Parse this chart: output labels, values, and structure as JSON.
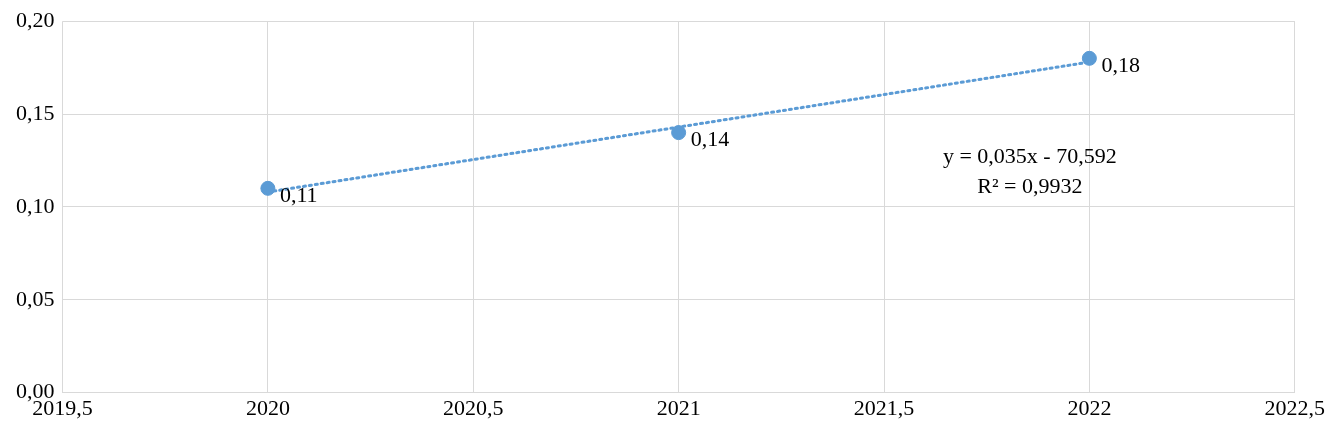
{
  "chart_data": {
    "type": "scatter",
    "xlim": [
      2019.5,
      2022.5
    ],
    "xticks": [
      {
        "value": 2019.5,
        "label": "2019,5"
      },
      {
        "value": 2020,
        "label": "2020"
      },
      {
        "value": 2020.5,
        "label": "2020,5"
      },
      {
        "value": 2021,
        "label": "2021"
      },
      {
        "value": 2021.5,
        "label": "2021,5"
      },
      {
        "value": 2022,
        "label": "2022"
      },
      {
        "value": 2022.5,
        "label": "2022,5"
      }
    ],
    "ylim": [
      0,
      0.2
    ],
    "yticks": [
      {
        "value": 0,
        "label": "0,00"
      },
      {
        "value": 0.05,
        "label": "0,05"
      },
      {
        "value": 0.1,
        "label": "0,10"
      },
      {
        "value": 0.15,
        "label": "0,15"
      },
      {
        "value": 0.2,
        "label": "0,20"
      }
    ],
    "grid": true,
    "legend": false,
    "series": [
      {
        "color": "#5b9bd5",
        "marker": "circle",
        "x": [
          2020,
          2021,
          2022
        ],
        "values": [
          0.11,
          0.14,
          0.18
        ],
        "value_labels": [
          "0,11",
          "0,14",
          "0,18"
        ]
      },
      {
        "type": "line",
        "color": "#5b9bd5",
        "marker": "none",
        "line_style": "dotted",
        "x": [
          2020,
          2022
        ],
        "values": [
          0.108,
          0.178
        ]
      }
    ],
    "annotations": [
      "y = 0,035x - 70,592",
      "R² = 0,9932"
    ]
  }
}
